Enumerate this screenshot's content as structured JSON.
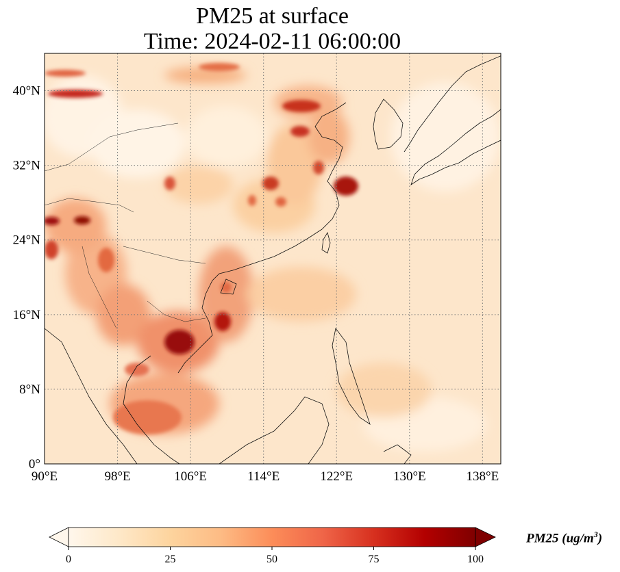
{
  "title": {
    "line1": "PM25 at surface",
    "line2": "Time: 2024-02-11 06:00:00"
  },
  "map": {
    "projection": "PlateCarree",
    "lon_range": [
      90,
      140
    ],
    "lat_range": [
      0,
      44
    ],
    "gridlines": true,
    "gridline_style": "dotted",
    "x_ticks": [
      {
        "lon": 90,
        "label": "90°E"
      },
      {
        "lon": 98,
        "label": "98°E"
      },
      {
        "lon": 106,
        "label": "106°E"
      },
      {
        "lon": 114,
        "label": "114°E"
      },
      {
        "lon": 122,
        "label": "122°E"
      },
      {
        "lon": 130,
        "label": "130°E"
      },
      {
        "lon": 138,
        "label": "138°E"
      }
    ],
    "y_ticks": [
      {
        "lat": 0,
        "label": "0°"
      },
      {
        "lat": 8,
        "label": "8°N"
      },
      {
        "lat": 16,
        "label": "16°N"
      },
      {
        "lat": 24,
        "label": "24°N"
      },
      {
        "lat": 32,
        "label": "32°N"
      },
      {
        "lat": 40,
        "label": "40°N"
      }
    ],
    "hotspots": [
      {
        "name": "north-china-plain",
        "lon": 117,
        "lat": 38.5,
        "pm25": 85
      },
      {
        "name": "yangtze-delta",
        "lon": 121.5,
        "lat": 31,
        "pm25": 90
      },
      {
        "name": "sichuan-basin",
        "lon": 104.5,
        "lat": 30.5,
        "pm25": 70
      },
      {
        "name": "central-china",
        "lon": 114,
        "lat": 30,
        "pm25": 65
      },
      {
        "name": "cambodia",
        "lon": 104.5,
        "lat": 13,
        "pm25": 95
      },
      {
        "name": "central-vietnam",
        "lon": 108.5,
        "lat": 15.5,
        "pm25": 80
      },
      {
        "name": "myanmar-north",
        "lon": 93,
        "lat": 26.5,
        "pm25": 95
      },
      {
        "name": "gulf-of-thailand",
        "lon": 101.5,
        "lat": 8,
        "pm25": 45
      },
      {
        "name": "mongolia-band",
        "lon": 93,
        "lat": 40.5,
        "pm25": 80
      }
    ]
  },
  "colorbar": {
    "colormap": "OrRd",
    "min": 0,
    "max": 100,
    "extend": "both",
    "ticks": [
      {
        "value": 0,
        "label": "0"
      },
      {
        "value": 25,
        "label": "25"
      },
      {
        "value": 50,
        "label": "50"
      },
      {
        "value": 75,
        "label": "75"
      },
      {
        "value": 100,
        "label": "100"
      }
    ],
    "label_prefix": "PM25 (ug/m",
    "label_exp": "3",
    "label_suffix": ")",
    "colors": [
      "#fff7ec",
      "#fee8c8",
      "#fdd49e",
      "#fdbb84",
      "#fc8d59",
      "#ef6548",
      "#d7301f",
      "#b30000",
      "#7f0000"
    ]
  }
}
